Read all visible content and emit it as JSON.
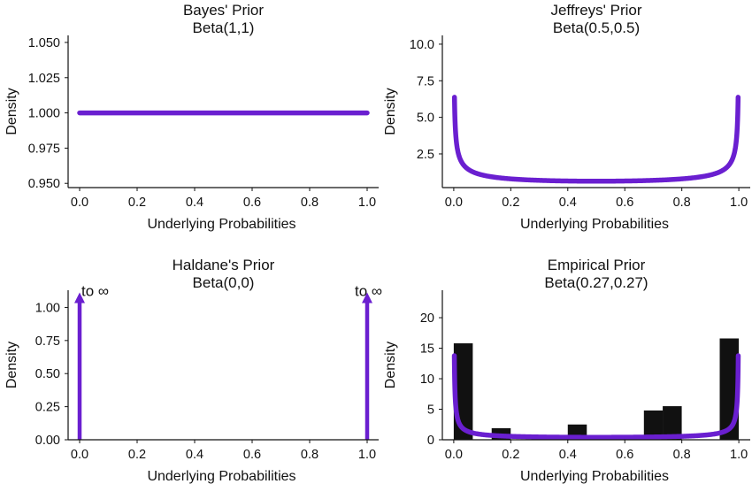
{
  "colors": {
    "curve": "#6a1fd0",
    "bar": "#111111",
    "spine": "#111111",
    "text": "#111111",
    "background": "#ffffff"
  },
  "chart_data": [
    {
      "type": "line",
      "title": "Bayes' Prior",
      "subtitle": "Beta(1,1)",
      "xlabel": "Underlying Probabilities",
      "ylabel": "Density",
      "xlim": [
        -0.04,
        1.04
      ],
      "ylim": [
        0.947,
        1.055
      ],
      "xticks": [
        0.0,
        0.2,
        0.4,
        0.6,
        0.8,
        1.0
      ],
      "xtick_labels": [
        "0.0",
        "0.2",
        "0.4",
        "0.6",
        "0.8",
        "1.0"
      ],
      "yticks": [
        0.95,
        0.975,
        1.0,
        1.025,
        1.05
      ],
      "ytick_labels": [
        "0.950",
        "0.975",
        "1.000",
        "1.025",
        "1.050"
      ],
      "grid": false,
      "series": [
        {
          "alpha": 1,
          "beta": 1,
          "x_range": [
            0.0,
            1.0
          ]
        }
      ]
    },
    {
      "type": "line",
      "title": "Jeffreys' Prior",
      "subtitle": "Beta(0.5,0.5)",
      "xlabel": "Underlying Probabilities",
      "ylabel": "Density",
      "xlim": [
        -0.04,
        1.04
      ],
      "ylim": [
        0.2,
        10.6
      ],
      "xticks": [
        0.0,
        0.2,
        0.4,
        0.6,
        0.8,
        1.0
      ],
      "xtick_labels": [
        "0.0",
        "0.2",
        "0.4",
        "0.6",
        "0.8",
        "1.0"
      ],
      "yticks": [
        2.5,
        5.0,
        7.5,
        10.0
      ],
      "ytick_labels": [
        "2.5",
        "5.0",
        "7.5",
        "10.0"
      ],
      "grid": false,
      "series": [
        {
          "alpha": 0.5,
          "beta": 0.5,
          "x_range": [
            0.0025,
            0.9975
          ]
        }
      ]
    },
    {
      "type": "line",
      "title": "Haldane's Prior",
      "subtitle": "Beta(0,0)",
      "xlabel": "Underlying Probabilities",
      "ylabel": "Density",
      "xlim": [
        -0.04,
        1.04
      ],
      "ylim": [
        0.0,
        1.13
      ],
      "xticks": [
        0.0,
        0.2,
        0.4,
        0.6,
        0.8,
        1.0
      ],
      "xtick_labels": [
        "0.0",
        "0.2",
        "0.4",
        "0.6",
        "0.8",
        "1.0"
      ],
      "yticks": [
        0.0,
        0.25,
        0.5,
        0.75,
        1.0
      ],
      "ytick_labels": [
        "0.00",
        "0.25",
        "0.50",
        "0.75",
        "1.00"
      ],
      "grid": false,
      "arrows": [
        {
          "x": 0.0,
          "y_from": 0.0,
          "y_to": 1.1,
          "label": "to ∞"
        },
        {
          "x": 1.0,
          "y_from": 0.0,
          "y_to": 1.1,
          "label": "to ∞"
        }
      ]
    },
    {
      "type": "bar",
      "title": "Empirical Prior",
      "subtitle": "Beta(0.27,0.27)",
      "xlabel": "Underlying Probabilities",
      "ylabel": "Density",
      "xlim": [
        -0.04,
        1.04
      ],
      "ylim": [
        0,
        24.5
      ],
      "xticks": [
        0.0,
        0.2,
        0.4,
        0.6,
        0.8,
        1.0
      ],
      "xtick_labels": [
        "0.0",
        "0.2",
        "0.4",
        "0.6",
        "0.8",
        "1.0"
      ],
      "yticks": [
        0,
        5,
        10,
        15,
        20
      ],
      "ytick_labels": [
        "0",
        "5",
        "10",
        "15",
        "20"
      ],
      "grid": false,
      "bars": {
        "bin_width": 0.0667,
        "x_left": [
          0.0,
          0.133,
          0.4,
          0.667,
          0.733,
          0.933
        ],
        "values": [
          15.8,
          1.9,
          2.5,
          4.8,
          5.5,
          16.6
        ]
      },
      "series": [
        {
          "alpha": 0.27,
          "beta": 0.27,
          "x_range": [
            0.002,
            0.998
          ],
          "ymax": 23.0
        }
      ]
    }
  ]
}
